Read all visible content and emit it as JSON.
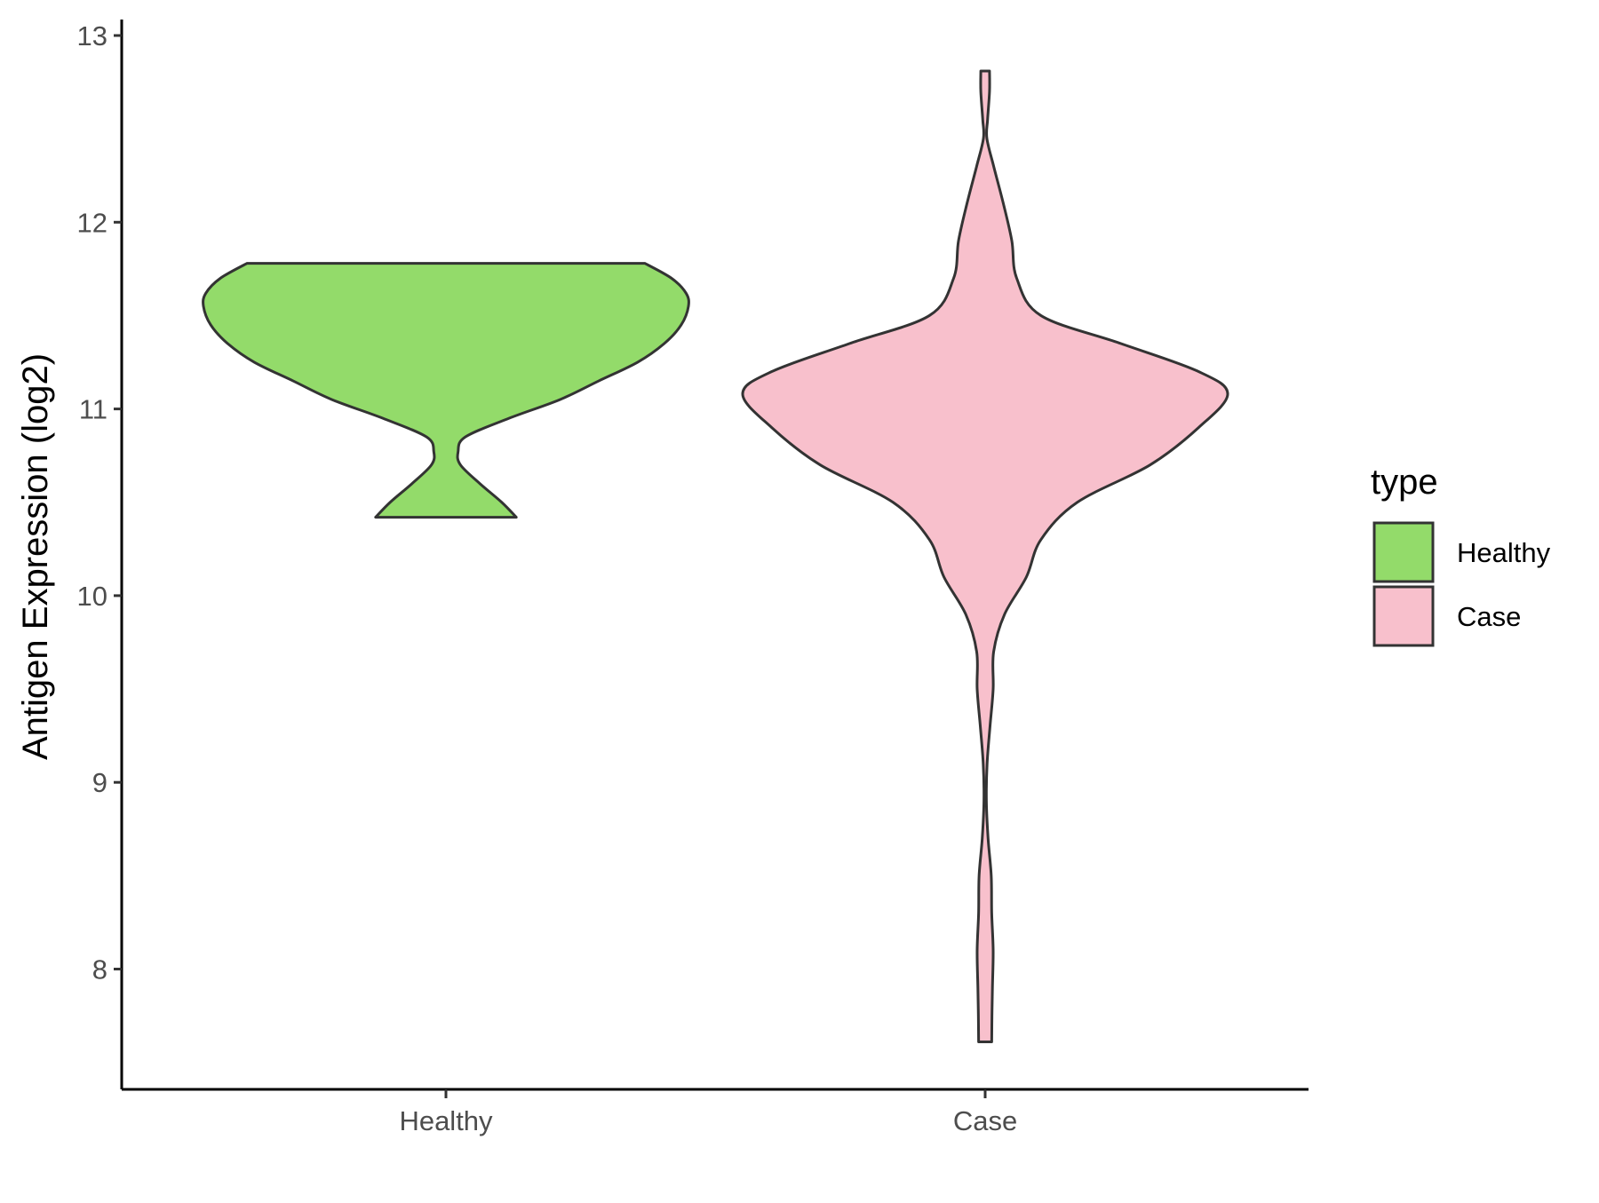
{
  "chart_data": {
    "type": "violin",
    "title": "",
    "xlabel": "",
    "ylabel": "Antigen Expression (log2)",
    "ylim": [
      7.4,
      13.1
    ],
    "y_ticks": [
      8,
      9,
      10,
      11,
      12,
      13
    ],
    "categories": [
      "Healthy",
      "Case"
    ],
    "legend": {
      "title": "type",
      "placement": "right",
      "entries": [
        {
          "label": "Healthy",
          "color": "#93DB6A"
        },
        {
          "label": "Case",
          "color": "#F8C0CC"
        }
      ]
    },
    "outline_color": "#333333",
    "series": [
      {
        "category": "Healthy",
        "color": "#93DB6A",
        "range": [
          10.42,
          11.78
        ],
        "density": [
          [
            10.42,
            0.29
          ],
          [
            10.5,
            0.23
          ],
          [
            10.6,
            0.14
          ],
          [
            10.7,
            0.06
          ],
          [
            10.77,
            0.05
          ],
          [
            10.85,
            0.08
          ],
          [
            10.95,
            0.26
          ],
          [
            11.05,
            0.47
          ],
          [
            11.15,
            0.63
          ],
          [
            11.25,
            0.79
          ],
          [
            11.35,
            0.9
          ],
          [
            11.45,
            0.97
          ],
          [
            11.55,
            1.0
          ],
          [
            11.62,
            0.99
          ],
          [
            11.7,
            0.93
          ],
          [
            11.78,
            0.82
          ]
        ]
      },
      {
        "category": "Case",
        "color": "#F8C0CC",
        "range": [
          7.61,
          12.81
        ],
        "density": [
          [
            7.61,
            0.027
          ],
          [
            7.75,
            0.028
          ],
          [
            7.9,
            0.03
          ],
          [
            8.1,
            0.033
          ],
          [
            8.3,
            0.027
          ],
          [
            8.5,
            0.025
          ],
          [
            8.7,
            0.012
          ],
          [
            8.9,
            0.005
          ],
          [
            9.1,
            0.008
          ],
          [
            9.3,
            0.02
          ],
          [
            9.5,
            0.033
          ],
          [
            9.7,
            0.035
          ],
          [
            9.9,
            0.08
          ],
          [
            10.1,
            0.17
          ],
          [
            10.3,
            0.23
          ],
          [
            10.5,
            0.38
          ],
          [
            10.7,
            0.68
          ],
          [
            10.9,
            0.88
          ],
          [
            11.08,
            1.0
          ],
          [
            11.2,
            0.88
          ],
          [
            11.35,
            0.56
          ],
          [
            11.5,
            0.23
          ],
          [
            11.7,
            0.13
          ],
          [
            11.9,
            0.11
          ],
          [
            12.1,
            0.075
          ],
          [
            12.3,
            0.035
          ],
          [
            12.45,
            0.007
          ],
          [
            12.55,
            0.01
          ],
          [
            12.7,
            0.018
          ],
          [
            12.81,
            0.018
          ]
        ]
      }
    ]
  }
}
